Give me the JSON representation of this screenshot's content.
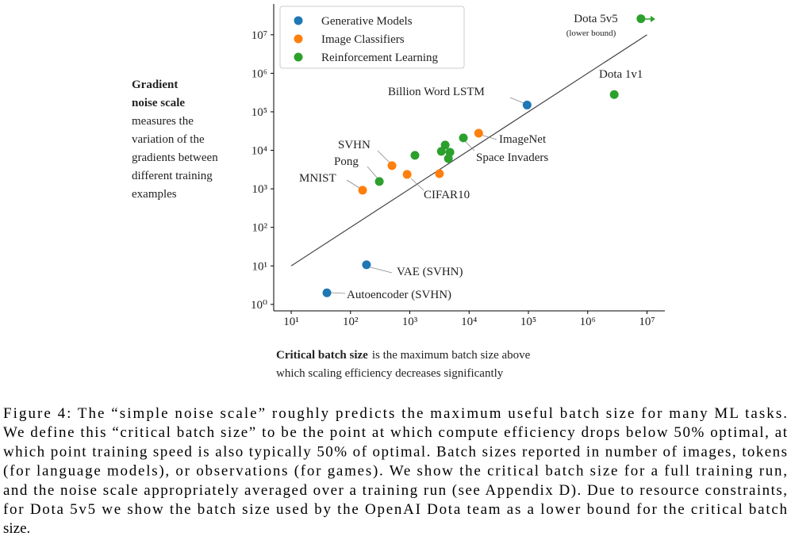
{
  "chart_data": {
    "type": "scatter",
    "log_x": true,
    "log_y": true,
    "grid": false,
    "legend": "upper left",
    "xlim": [
      5.07,
      20000000
    ],
    "ylim": [
      0.68,
      63000000
    ],
    "xticks": [
      {
        "value": 10,
        "label": "10¹"
      },
      {
        "value": 100,
        "label": "10²"
      },
      {
        "value": 1000,
        "label": "10³"
      },
      {
        "value": 10000,
        "label": "10⁴"
      },
      {
        "value": 100000,
        "label": "10⁵"
      },
      {
        "value": 1000000,
        "label": "10⁶"
      },
      {
        "value": 10000000,
        "label": "10⁷"
      }
    ],
    "yticks": [
      {
        "value": 1,
        "label": "10⁰"
      },
      {
        "value": 10,
        "label": "10¹"
      },
      {
        "value": 100,
        "label": "10²"
      },
      {
        "value": 1000,
        "label": "10³"
      },
      {
        "value": 10000,
        "label": "10⁴"
      },
      {
        "value": 100000,
        "label": "10⁵"
      },
      {
        "value": 1000000,
        "label": "10⁶"
      },
      {
        "value": 10000000,
        "label": "10⁷"
      }
    ],
    "x_label": {
      "title": "Critical batch size",
      "lines": [
        "is the maximum batch size above",
        "which scaling efficiency decreases significantly"
      ]
    },
    "y_label": {
      "title_lines": [
        "Gradient",
        "noise scale"
      ],
      "lines": [
        "measures the",
        "variation of the",
        "gradients between",
        "different training",
        "examples"
      ]
    },
    "series": [
      {
        "name": "Generative Models",
        "color": "#1f77b4",
        "x": [
          40,
          186,
          95000
        ],
        "y": [
          2.0,
          10.7,
          150000
        ]
      },
      {
        "name": "Image Classifiers",
        "color": "#ff7f0e",
        "x": [
          160,
          500,
          900,
          3160,
          14500
        ],
        "y": [
          920,
          4000,
          2370,
          2480,
          27800
        ]
      },
      {
        "name": "Reinforcement Learning",
        "color": "#2ca02c",
        "x": [
          306,
          1220,
          3400,
          3950,
          4750,
          4470,
          8000,
          2800000,
          7900000
        ],
        "y": [
          1550,
          7400,
          9400,
          13700,
          8900,
          6100,
          21000,
          280000,
          26000000
        ]
      }
    ],
    "trend_line": {
      "x": [
        10,
        10000000
      ],
      "y": [
        10,
        10000000
      ]
    },
    "annotations": [
      "Dota 5v5",
      "(lower bound)",
      "Dota 1v1",
      "Billion Word LSTM",
      "ImageNet",
      "Space Invaders",
      "SVHN",
      "Pong",
      "MNIST",
      "CIFAR10",
      "VAE (SVHN)",
      "Autoencoder (SVHN)"
    ]
  },
  "caption": [
    "Figure 4: The “simple noise scale” roughly predicts the maximum useful batch size for many ML tasks.",
    "We define this “critical batch size” to be the point at which compute efficiency drops below 50% optimal, at",
    "which point training speed is also typically 50% of optimal. Batch sizes reported in number of images, tokens",
    "(for language models), or observations (for games).  We show the critical batch size for a full training run,",
    "and the noise scale appropriately averaged over a training run (see Appendix D). Due to resource constraints,",
    "for Dota 5v5 we show the batch size used by the OpenAI Dota team as a lower bound for the critical batch",
    "size."
  ]
}
